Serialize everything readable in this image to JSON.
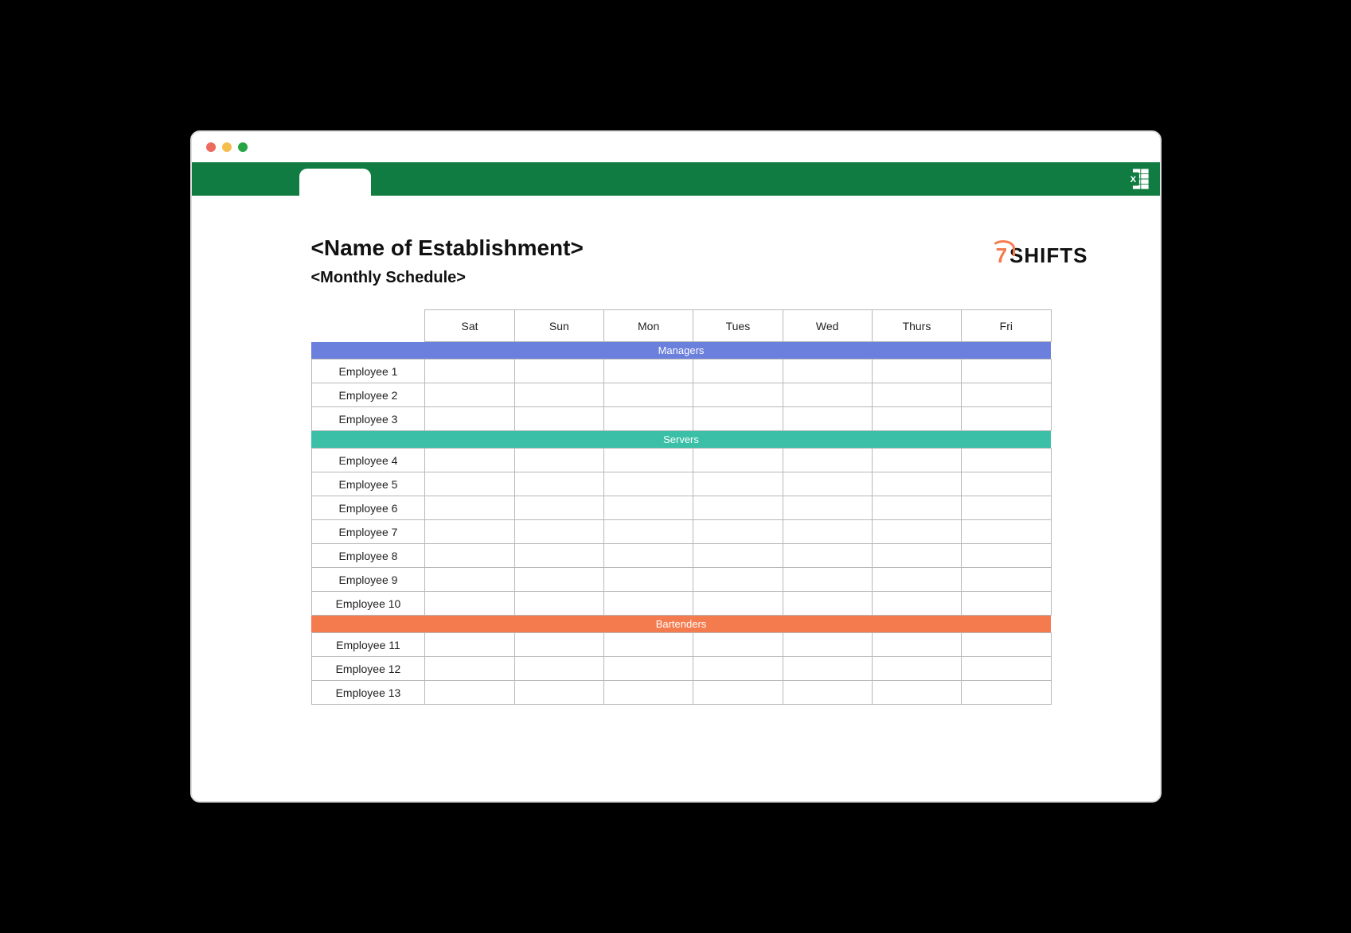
{
  "window": {
    "traffic_colors": [
      "#ec6a5e",
      "#f4be4f",
      "#27a444"
    ],
    "ribbon_color": "#107c41"
  },
  "header": {
    "title": "<Name of Establishment>",
    "subtitle": "<Monthly Schedule>",
    "logo_seven": "7",
    "logo_text": "SHIFTS",
    "logo_accent": "#f47b4e"
  },
  "table": {
    "days": [
      "Sat",
      "Sun",
      "Mon",
      "Tues",
      "Wed",
      "Thurs",
      "Fri"
    ],
    "sections": [
      {
        "label": "Managers",
        "color": "#6b7fdc",
        "employees": [
          "Employee 1",
          "Employee 2",
          "Employee 3"
        ]
      },
      {
        "label": "Servers",
        "color": "#3bc0a7",
        "employees": [
          "Employee 4",
          "Employee 5",
          "Employee 6",
          "Employee 7",
          "Employee 8",
          "Employee 9",
          "Employee 10"
        ]
      },
      {
        "label": "Bartenders",
        "color": "#f47b4e",
        "employees": [
          "Employee 11",
          "Employee 12",
          "Employee 13"
        ]
      }
    ],
    "border_color": "#b8b8b8"
  }
}
